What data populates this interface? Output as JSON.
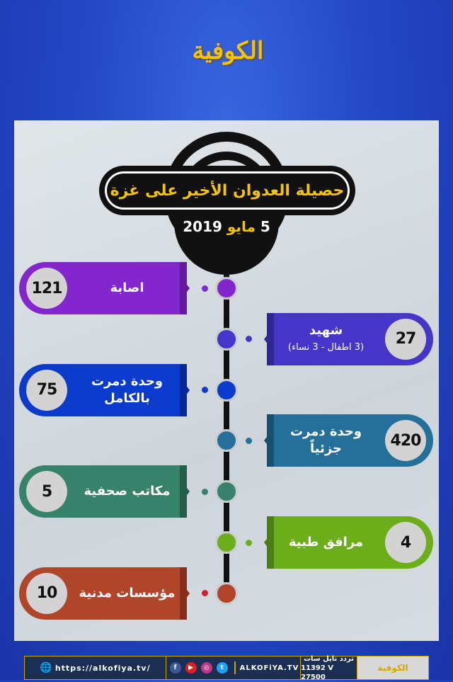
{
  "brand": {
    "logo_text": "الكوفية"
  },
  "header": {
    "title": "حصيلة العدوان الأخير على غزة",
    "date_day": "5",
    "date_month": "مايو",
    "date_year": "2019"
  },
  "items": [
    {
      "side": "left",
      "value": "121",
      "label": "اصابة",
      "sub": "",
      "color": "#8426cf",
      "dark": "#6419a3"
    },
    {
      "side": "right",
      "value": "27",
      "label": "شهيد",
      "sub": "(3 اطفال - 3 نساء)",
      "color": "#4535cb",
      "dark": "#2f2498"
    },
    {
      "side": "left",
      "value": "75",
      "label": "وحدة دمرت بالكامل",
      "sub": "",
      "color": "#0b3bcc",
      "dark": "#06289a"
    },
    {
      "side": "right",
      "value": "420",
      "label": "وحدة دمرت جزئياً",
      "sub": "",
      "color": "#24709a",
      "dark": "#174f70"
    },
    {
      "side": "left",
      "value": "5",
      "label": "مكاتب صحفية",
      "sub": "",
      "color": "#36826a",
      "dark": "#245e4b"
    },
    {
      "side": "right",
      "value": "4",
      "label": "مرافق طبية",
      "sub": "",
      "color": "#6cae1a",
      "dark": "#4b8010"
    },
    {
      "side": "left",
      "value": "10",
      "label": "مؤسسات مدنية",
      "sub": "",
      "color": "#b0452a",
      "dark": "#84301c",
      "dot": "#d0202e"
    }
  ],
  "footer": {
    "website": "https://alkofiya.tv/",
    "handle": "ALKOFiYA.TV",
    "freq_label": "تردد نايل سات",
    "freq_value": "11392 V 27500",
    "socials": [
      "facebook-icon",
      "youtube-icon",
      "instagram-icon",
      "twitter-icon"
    ]
  }
}
